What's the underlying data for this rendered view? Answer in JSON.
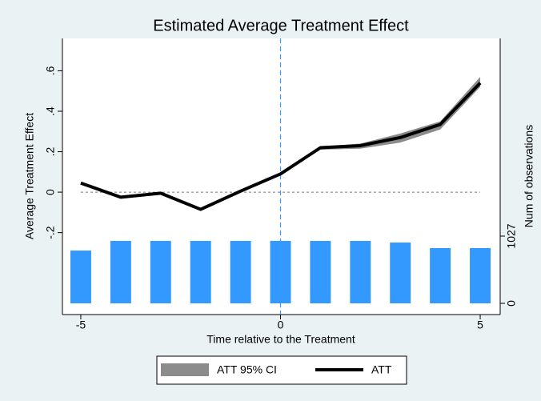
{
  "chart_data": {
    "type": "line",
    "title": "Estimated Average Treatment Effect",
    "xlabel": "Time relative to the Treatment",
    "ylabel": "Average Treatment Effect",
    "y2label": "Num of observations",
    "x": [
      -5,
      -4,
      -3,
      -2,
      -1,
      0,
      1,
      2,
      3,
      4,
      5
    ],
    "series": [
      {
        "name": "ATT 95% CI",
        "type": "area",
        "color": "#8c8c8c",
        "lower": [
          0.04,
          -0.03,
          -0.01,
          -0.09,
          0.0,
          0.085,
          0.21,
          0.215,
          0.245,
          0.31,
          0.52
        ],
        "upper": [
          0.05,
          -0.02,
          0.0,
          -0.08,
          0.01,
          0.095,
          0.225,
          0.24,
          0.29,
          0.35,
          0.57
        ]
      },
      {
        "name": "ATT",
        "type": "line",
        "color": "#000000",
        "values": [
          0.045,
          -0.025,
          -0.005,
          -0.085,
          0.005,
          0.09,
          0.22,
          0.23,
          0.27,
          0.335,
          0.54
        ]
      },
      {
        "type": "bar",
        "axis": "y2",
        "color": "#3399ff",
        "values": [
          807,
          954,
          954,
          954,
          954,
          954,
          954,
          954,
          929,
          844,
          844
        ]
      }
    ],
    "xlim": [
      -5.46,
      5.5
    ],
    "xticks": [
      -5,
      0,
      5
    ],
    "ylim": [
      -0.605,
      0.76
    ],
    "yticks": [
      {
        "value": -0.2,
        "label": "-.2"
      },
      0,
      {
        "value": 0.2,
        "label": ".2"
      },
      {
        "value": 0.4,
        "label": ".4"
      },
      {
        "value": 0.6,
        "label": ".6"
      }
    ],
    "y2lim": [
      -171,
      4047
    ],
    "y2ticks": [
      0,
      1027
    ],
    "xline": 0,
    "yline": 0,
    "legend": "bottom"
  }
}
